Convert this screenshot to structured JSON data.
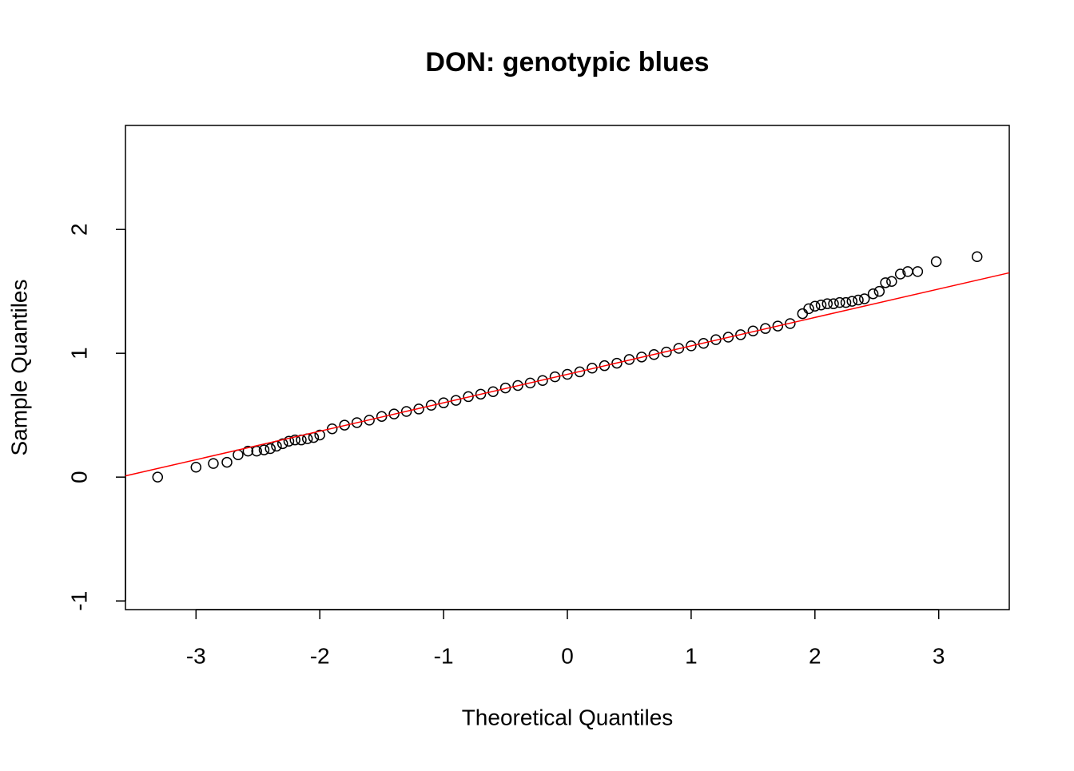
{
  "chart_data": {
    "type": "scatter",
    "title": "DON: genotypic blues",
    "x_label": "Theoretical Quantiles",
    "y_label": "Sample Quantiles",
    "x": [
      -3.31,
      -3.0,
      -2.86,
      -2.75,
      -2.66,
      -2.58,
      -2.51,
      -2.45,
      -2.4,
      -2.35,
      -2.3,
      -2.25,
      -2.2,
      -2.15,
      -2.1,
      -2.05,
      -2.0,
      -1.9,
      -1.8,
      -1.7,
      -1.6,
      -1.5,
      -1.4,
      -1.3,
      -1.2,
      -1.1,
      -1.0,
      -0.9,
      -0.8,
      -0.7,
      -0.6,
      -0.5,
      -0.4,
      -0.3,
      -0.2,
      -0.1,
      0,
      0.1,
      0.2,
      0.3,
      0.4,
      0.5,
      0.6,
      0.7,
      0.8,
      0.9,
      1.0,
      1.1,
      1.2,
      1.3,
      1.4,
      1.5,
      1.6,
      1.7,
      1.8,
      1.9,
      1.95,
      2.0,
      2.05,
      2.1,
      2.15,
      2.2,
      2.25,
      2.3,
      2.35,
      2.4,
      2.47,
      2.52,
      2.57,
      2.62,
      2.69,
      2.75,
      2.83,
      2.98,
      3.31
    ],
    "y": [
      0.0,
      0.08,
      0.11,
      0.12,
      0.18,
      0.21,
      0.21,
      0.22,
      0.23,
      0.25,
      0.27,
      0.29,
      0.3,
      0.3,
      0.31,
      0.32,
      0.34,
      0.39,
      0.42,
      0.44,
      0.46,
      0.49,
      0.51,
      0.53,
      0.55,
      0.58,
      0.6,
      0.62,
      0.65,
      0.67,
      0.69,
      0.72,
      0.74,
      0.76,
      0.78,
      0.81,
      0.83,
      0.85,
      0.88,
      0.9,
      0.92,
      0.95,
      0.97,
      0.99,
      1.01,
      1.04,
      1.06,
      1.08,
      1.11,
      1.13,
      1.15,
      1.18,
      1.2,
      1.22,
      1.24,
      1.32,
      1.36,
      1.38,
      1.39,
      1.4,
      1.4,
      1.41,
      1.41,
      1.42,
      1.43,
      1.44,
      1.48,
      1.5,
      1.57,
      1.58,
      1.64,
      1.66,
      1.66,
      1.74,
      1.78
    ],
    "color": "#000000",
    "reference_line": {
      "x": [
        -3.57,
        3.57
      ],
      "y": [
        0.01,
        1.65
      ],
      "color": "#ff0000"
    },
    "xlim": [
      -3.57,
      3.57
    ],
    "ylim": [
      -1.07,
      2.84
    ],
    "xticks": [
      -3,
      -2,
      -1,
      0,
      1,
      2,
      3
    ],
    "yticks": [
      -1,
      0,
      1,
      2
    ]
  }
}
